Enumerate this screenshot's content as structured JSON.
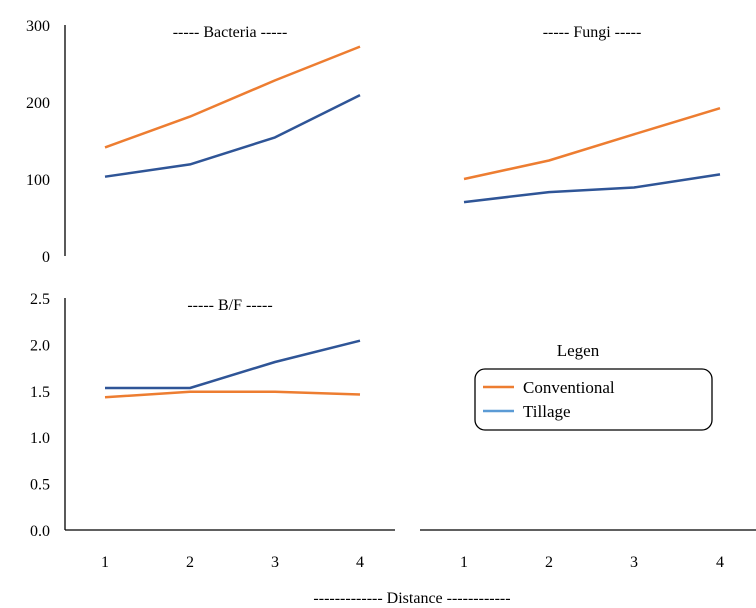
{
  "chart_data": [
    {
      "type": "line",
      "panel": "top-left",
      "title": "----- Bacteria -----",
      "x": [
        1,
        2,
        3,
        4
      ],
      "ylim": [
        0,
        300
      ],
      "yticks": [
        "0",
        "100",
        "200",
        "300"
      ],
      "series": [
        {
          "name": "Conventional",
          "color": "#ED7D31",
          "values": [
            141,
            181,
            228,
            272
          ]
        },
        {
          "name": "Tillage",
          "color": "#2F5597",
          "values": [
            103,
            119,
            154,
            209
          ]
        }
      ]
    },
    {
      "type": "line",
      "panel": "top-right",
      "title": "----- Fungi -----",
      "x": [
        1,
        2,
        3,
        4
      ],
      "ylim": [
        0,
        300
      ],
      "series": [
        {
          "name": "Conventional",
          "color": "#ED7D31",
          "values": [
            100,
            124,
            158,
            192
          ]
        },
        {
          "name": "Tillage",
          "color": "#2F5597",
          "values": [
            70,
            83,
            89,
            106
          ]
        }
      ]
    },
    {
      "type": "line",
      "panel": "bottom-left",
      "title": "----- B/F -----",
      "x": [
        1,
        2,
        3,
        4
      ],
      "xticks": [
        "1",
        "2",
        "3",
        "4"
      ],
      "ylim": [
        0,
        2.5
      ],
      "yticks": [
        "0.0",
        "0.5",
        "1.0",
        "1.5",
        "2.0",
        "2.5"
      ],
      "series": [
        {
          "name": "Conventional",
          "color": "#ED7D31",
          "values": [
            1.43,
            1.49,
            1.49,
            1.46
          ]
        },
        {
          "name": "Tillage",
          "color": "#2F5597",
          "values": [
            1.53,
            1.53,
            1.81,
            2.04
          ]
        }
      ]
    },
    {
      "type": "line",
      "panel": "bottom-right",
      "x": [
        1,
        2,
        3,
        4
      ],
      "xticks": [
        "1",
        "2",
        "3",
        "4"
      ],
      "series": []
    }
  ],
  "xlabel": "------------- Distance ------------",
  "legend": {
    "title": "Legen",
    "items": [
      {
        "label": "Conventional",
        "color": "#ED7D31"
      },
      {
        "label": "Tillage",
        "color": "#5B9BD5"
      }
    ]
  }
}
